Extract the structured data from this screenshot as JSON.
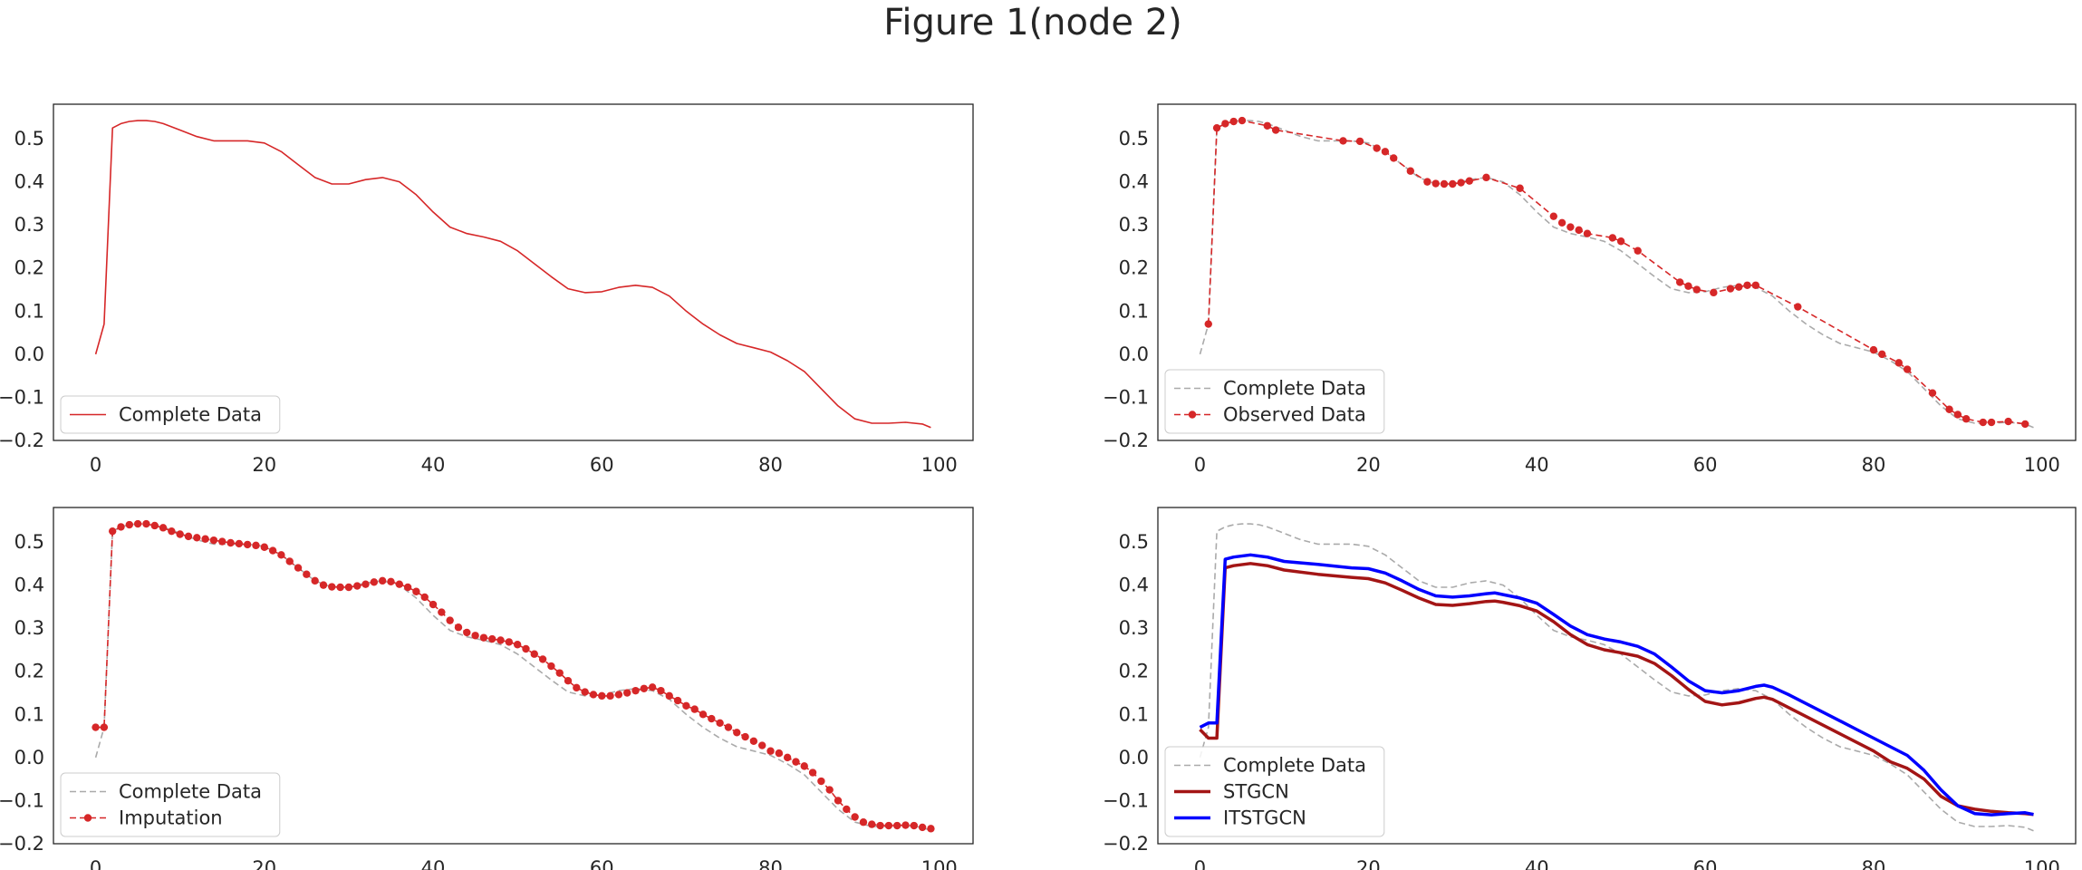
{
  "figure": {
    "title": "Figure 1(node 2)"
  },
  "colors": {
    "red": "#d62728",
    "gray": "#aaaaaa",
    "darkred": "#a31515",
    "blue": "#0000ff"
  },
  "chart_data": [
    {
      "type": "line",
      "panel": "top-left",
      "xlim": [
        -5,
        104
      ],
      "ylim": [
        -0.2,
        0.58
      ],
      "xticks": [
        "0",
        "20",
        "40",
        "60",
        "80",
        "100"
      ],
      "yticks": [
        "−0.2",
        "−0.1",
        "0.0",
        "0.1",
        "0.2",
        "0.3",
        "0.4",
        "0.5"
      ],
      "legend_loc": "lower left",
      "series": [
        {
          "name": "Complete Data",
          "style": "solid-red",
          "x": [
            0,
            1,
            2,
            3,
            4,
            5,
            6,
            7,
            8,
            10,
            12,
            14,
            16,
            18,
            20,
            22,
            24,
            26,
            28,
            30,
            32,
            34,
            36,
            38,
            40,
            42,
            44,
            46,
            48,
            50,
            52,
            54,
            56,
            58,
            60,
            62,
            64,
            66,
            68,
            70,
            72,
            74,
            76,
            78,
            80,
            82,
            84,
            86,
            88,
            90,
            92,
            94,
            96,
            98,
            99
          ],
          "y": [
            0.0,
            0.07,
            0.525,
            0.535,
            0.54,
            0.542,
            0.542,
            0.54,
            0.535,
            0.52,
            0.505,
            0.495,
            0.495,
            0.495,
            0.49,
            0.47,
            0.44,
            0.41,
            0.395,
            0.395,
            0.405,
            0.41,
            0.4,
            0.37,
            0.33,
            0.295,
            0.28,
            0.272,
            0.262,
            0.24,
            0.21,
            0.18,
            0.152,
            0.143,
            0.145,
            0.155,
            0.16,
            0.155,
            0.135,
            0.1,
            0.07,
            0.045,
            0.025,
            0.015,
            0.005,
            -0.015,
            -0.04,
            -0.08,
            -0.12,
            -0.15,
            -0.16,
            -0.16,
            -0.158,
            -0.162,
            -0.17
          ]
        }
      ]
    },
    {
      "type": "line",
      "panel": "top-right",
      "xlim": [
        -5,
        104
      ],
      "ylim": [
        -0.2,
        0.58
      ],
      "xticks": [
        "0",
        "20",
        "40",
        "60",
        "80",
        "100"
      ],
      "yticks": [
        "−0.2",
        "−0.1",
        "0.0",
        "0.1",
        "0.2",
        "0.3",
        "0.4",
        "0.5"
      ],
      "legend_loc": "lower left",
      "series": [
        {
          "name": "Complete Data",
          "style": "dashed-gray",
          "x": [
            0,
            1,
            2,
            3,
            4,
            5,
            6,
            7,
            8,
            10,
            12,
            14,
            16,
            18,
            20,
            22,
            24,
            26,
            28,
            30,
            32,
            34,
            36,
            38,
            40,
            42,
            44,
            46,
            48,
            50,
            52,
            54,
            56,
            58,
            60,
            62,
            64,
            66,
            68,
            70,
            72,
            74,
            76,
            78,
            80,
            82,
            84,
            86,
            88,
            90,
            92,
            94,
            96,
            98,
            99
          ],
          "y": [
            0.0,
            0.07,
            0.525,
            0.535,
            0.54,
            0.542,
            0.542,
            0.54,
            0.535,
            0.52,
            0.505,
            0.495,
            0.495,
            0.495,
            0.49,
            0.47,
            0.44,
            0.41,
            0.395,
            0.395,
            0.405,
            0.41,
            0.4,
            0.37,
            0.33,
            0.295,
            0.28,
            0.272,
            0.262,
            0.24,
            0.21,
            0.18,
            0.152,
            0.143,
            0.145,
            0.155,
            0.16,
            0.155,
            0.135,
            0.1,
            0.07,
            0.045,
            0.025,
            0.015,
            0.005,
            -0.015,
            -0.04,
            -0.08,
            -0.12,
            -0.15,
            -0.16,
            -0.16,
            -0.158,
            -0.162,
            -0.17
          ]
        },
        {
          "name": "Observed Data",
          "style": "dashed-red-markers",
          "x": [
            1,
            2,
            3,
            4,
            5,
            8,
            9,
            17,
            19,
            21,
            22,
            23,
            25,
            27,
            28,
            29,
            30,
            31,
            32,
            34,
            38,
            42,
            43,
            44,
            45,
            46,
            49,
            50,
            52,
            57,
            58,
            59,
            61,
            63,
            64,
            65,
            66,
            71,
            80,
            81,
            83,
            84,
            87,
            89,
            90,
            91,
            93,
            94,
            96,
            98
          ],
          "y": [
            0.07,
            0.525,
            0.535,
            0.54,
            0.542,
            0.53,
            0.52,
            0.495,
            0.494,
            0.478,
            0.47,
            0.455,
            0.425,
            0.4,
            0.396,
            0.395,
            0.395,
            0.398,
            0.402,
            0.41,
            0.385,
            0.32,
            0.305,
            0.295,
            0.288,
            0.28,
            0.27,
            0.262,
            0.24,
            0.167,
            0.158,
            0.15,
            0.143,
            0.152,
            0.156,
            0.16,
            0.16,
            0.11,
            0.01,
            0.0,
            -0.02,
            -0.035,
            -0.09,
            -0.128,
            -0.14,
            -0.15,
            -0.158,
            -0.158,
            -0.156,
            -0.162
          ]
        }
      ]
    },
    {
      "type": "line",
      "panel": "bottom-left",
      "xlim": [
        -5,
        104
      ],
      "ylim": [
        -0.2,
        0.58
      ],
      "xticks": [
        "0",
        "20",
        "40",
        "60",
        "80",
        "100"
      ],
      "yticks": [
        "−0.2",
        "−0.1",
        "0.0",
        "0.1",
        "0.2",
        "0.3",
        "0.4",
        "0.5"
      ],
      "legend_loc": "lower left",
      "series": [
        {
          "name": "Complete Data",
          "style": "dashed-gray",
          "x": [
            0,
            1,
            2,
            3,
            4,
            5,
            6,
            7,
            8,
            10,
            12,
            14,
            16,
            18,
            20,
            22,
            24,
            26,
            28,
            30,
            32,
            34,
            36,
            38,
            40,
            42,
            44,
            46,
            48,
            50,
            52,
            54,
            56,
            58,
            60,
            62,
            64,
            66,
            68,
            70,
            72,
            74,
            76,
            78,
            80,
            82,
            84,
            86,
            88,
            90,
            92,
            94,
            96,
            98,
            99
          ],
          "y": [
            0.0,
            0.07,
            0.525,
            0.535,
            0.54,
            0.542,
            0.542,
            0.54,
            0.535,
            0.52,
            0.505,
            0.495,
            0.495,
            0.495,
            0.49,
            0.47,
            0.44,
            0.41,
            0.395,
            0.395,
            0.405,
            0.41,
            0.4,
            0.37,
            0.33,
            0.295,
            0.28,
            0.272,
            0.262,
            0.24,
            0.21,
            0.18,
            0.152,
            0.143,
            0.145,
            0.155,
            0.16,
            0.155,
            0.135,
            0.1,
            0.07,
            0.045,
            0.025,
            0.015,
            0.005,
            -0.015,
            -0.04,
            -0.08,
            -0.12,
            -0.15,
            -0.16,
            -0.16,
            -0.158,
            -0.162,
            -0.17
          ]
        },
        {
          "name": "Imputation",
          "style": "dashed-red-markers",
          "x": [
            0,
            1,
            2,
            3,
            4,
            5,
            6,
            7,
            8,
            9,
            10,
            11,
            12,
            13,
            14,
            15,
            16,
            17,
            18,
            19,
            20,
            21,
            22,
            23,
            24,
            25,
            26,
            27,
            28,
            29,
            30,
            31,
            32,
            33,
            34,
            35,
            36,
            37,
            38,
            39,
            40,
            41,
            42,
            43,
            44,
            45,
            46,
            47,
            48,
            49,
            50,
            51,
            52,
            53,
            54,
            55,
            56,
            57,
            58,
            59,
            60,
            61,
            62,
            63,
            64,
            65,
            66,
            67,
            68,
            69,
            70,
            71,
            72,
            73,
            74,
            75,
            76,
            77,
            78,
            79,
            80,
            81,
            82,
            83,
            84,
            85,
            86,
            87,
            88,
            89,
            90,
            91,
            92,
            93,
            94,
            95,
            96,
            97,
            98,
            99
          ],
          "y": [
            0.07,
            0.07,
            0.525,
            0.535,
            0.54,
            0.542,
            0.542,
            0.538,
            0.533,
            0.525,
            0.518,
            0.513,
            0.51,
            0.507,
            0.504,
            0.501,
            0.498,
            0.496,
            0.494,
            0.492,
            0.488,
            0.48,
            0.47,
            0.455,
            0.44,
            0.425,
            0.41,
            0.4,
            0.396,
            0.395,
            0.395,
            0.398,
            0.402,
            0.407,
            0.41,
            0.408,
            0.402,
            0.395,
            0.385,
            0.372,
            0.355,
            0.337,
            0.318,
            0.302,
            0.29,
            0.283,
            0.278,
            0.275,
            0.272,
            0.268,
            0.262,
            0.252,
            0.24,
            0.228,
            0.212,
            0.196,
            0.178,
            0.162,
            0.152,
            0.146,
            0.143,
            0.143,
            0.146,
            0.15,
            0.155,
            0.16,
            0.163,
            0.155,
            0.143,
            0.132,
            0.12,
            0.112,
            0.1,
            0.09,
            0.08,
            0.07,
            0.058,
            0.048,
            0.038,
            0.028,
            0.015,
            0.01,
            0.0,
            -0.01,
            -0.02,
            -0.035,
            -0.055,
            -0.075,
            -0.1,
            -0.12,
            -0.138,
            -0.15,
            -0.155,
            -0.158,
            -0.158,
            -0.158,
            -0.157,
            -0.158,
            -0.162,
            -0.165
          ]
        }
      ]
    },
    {
      "type": "line",
      "panel": "bottom-right",
      "xlim": [
        -5,
        104
      ],
      "ylim": [
        -0.2,
        0.58
      ],
      "xticks": [
        "0",
        "20",
        "40",
        "60",
        "80",
        "100"
      ],
      "yticks": [
        "−0.2",
        "−0.1",
        "0.0",
        "0.1",
        "0.2",
        "0.3",
        "0.4",
        "0.5"
      ],
      "legend_loc": "lower left",
      "series": [
        {
          "name": "Complete Data",
          "style": "dashed-gray",
          "x": [
            0,
            1,
            2,
            3,
            4,
            5,
            6,
            7,
            8,
            10,
            12,
            14,
            16,
            18,
            20,
            22,
            24,
            26,
            28,
            30,
            32,
            34,
            36,
            38,
            40,
            42,
            44,
            46,
            48,
            50,
            52,
            54,
            56,
            58,
            60,
            62,
            64,
            66,
            68,
            70,
            72,
            74,
            76,
            78,
            80,
            82,
            84,
            86,
            88,
            90,
            92,
            94,
            96,
            98,
            99
          ],
          "y": [
            0.0,
            0.07,
            0.525,
            0.535,
            0.54,
            0.542,
            0.542,
            0.54,
            0.535,
            0.52,
            0.505,
            0.495,
            0.495,
            0.495,
            0.49,
            0.47,
            0.44,
            0.41,
            0.395,
            0.395,
            0.405,
            0.41,
            0.4,
            0.37,
            0.33,
            0.295,
            0.28,
            0.272,
            0.262,
            0.24,
            0.21,
            0.18,
            0.152,
            0.143,
            0.145,
            0.155,
            0.16,
            0.155,
            0.135,
            0.1,
            0.07,
            0.045,
            0.025,
            0.015,
            0.005,
            -0.015,
            -0.04,
            -0.08,
            -0.12,
            -0.15,
            -0.16,
            -0.16,
            -0.158,
            -0.162,
            -0.17
          ]
        },
        {
          "name": "STGCN",
          "style": "solid-darkred-thick",
          "x": [
            0,
            1,
            2,
            3,
            4,
            6,
            8,
            10,
            14,
            18,
            20,
            22,
            24,
            26,
            28,
            30,
            32,
            34,
            35,
            36,
            38,
            40,
            42,
            44,
            46,
            48,
            50,
            52,
            54,
            56,
            58,
            60,
            62,
            64,
            66,
            67,
            68,
            70,
            72,
            74,
            76,
            78,
            80,
            82,
            84,
            86,
            88,
            90,
            92,
            94,
            96,
            98,
            99
          ],
          "y": [
            0.065,
            0.045,
            0.045,
            0.44,
            0.445,
            0.45,
            0.445,
            0.435,
            0.425,
            0.418,
            0.415,
            0.405,
            0.388,
            0.37,
            0.355,
            0.353,
            0.357,
            0.362,
            0.363,
            0.36,
            0.352,
            0.34,
            0.315,
            0.285,
            0.262,
            0.25,
            0.243,
            0.235,
            0.218,
            0.19,
            0.158,
            0.13,
            0.122,
            0.127,
            0.137,
            0.14,
            0.135,
            0.115,
            0.095,
            0.075,
            0.055,
            0.035,
            0.015,
            -0.01,
            -0.025,
            -0.05,
            -0.09,
            -0.112,
            -0.12,
            -0.125,
            -0.128,
            -0.13,
            -0.132
          ]
        },
        {
          "name": "ITSTGCN",
          "style": "solid-blue-thick",
          "x": [
            0,
            1,
            2,
            3,
            4,
            6,
            8,
            10,
            14,
            18,
            20,
            22,
            24,
            26,
            28,
            30,
            32,
            34,
            35,
            36,
            38,
            40,
            42,
            44,
            46,
            48,
            50,
            52,
            54,
            56,
            58,
            60,
            62,
            64,
            66,
            67,
            68,
            70,
            72,
            74,
            76,
            78,
            80,
            82,
            84,
            86,
            88,
            90,
            92,
            94,
            96,
            98,
            99
          ],
          "y": [
            0.07,
            0.08,
            0.08,
            0.46,
            0.465,
            0.47,
            0.465,
            0.455,
            0.448,
            0.44,
            0.438,
            0.428,
            0.41,
            0.39,
            0.375,
            0.372,
            0.375,
            0.38,
            0.382,
            0.378,
            0.37,
            0.358,
            0.332,
            0.305,
            0.285,
            0.275,
            0.268,
            0.258,
            0.24,
            0.21,
            0.178,
            0.155,
            0.15,
            0.155,
            0.165,
            0.168,
            0.163,
            0.145,
            0.125,
            0.105,
            0.085,
            0.065,
            0.045,
            0.025,
            0.005,
            -0.03,
            -0.075,
            -0.112,
            -0.13,
            -0.133,
            -0.13,
            -0.128,
            -0.132
          ]
        }
      ]
    }
  ]
}
